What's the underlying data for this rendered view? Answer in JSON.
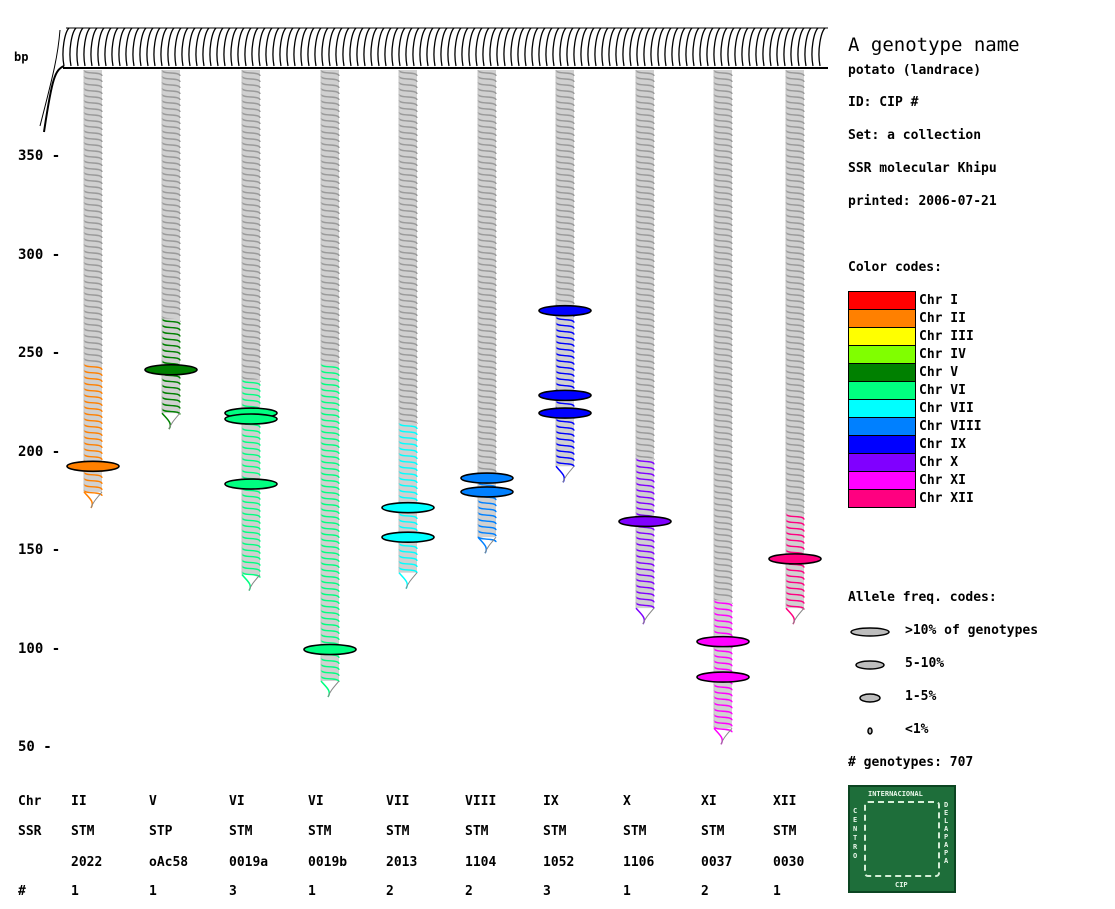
{
  "info": {
    "title": "A genotype name",
    "subtitle": "potato (landrace)",
    "id_line": "ID: CIP #",
    "set_line": "Set: a collection",
    "method_line": "SSR molecular Khipu",
    "printed_line": "printed: 2006-07-21"
  },
  "axis": {
    "unit": "bp",
    "ticks": [
      "350 -",
      "300 -",
      "250 -",
      "200 -",
      "150 -",
      "100 -",
      "50 -"
    ],
    "tick_values": [
      350,
      300,
      250,
      200,
      150,
      100,
      50
    ],
    "range": [
      40,
      380
    ]
  },
  "row_labels": {
    "chr": "Chr",
    "ssr": "SSR",
    "count": "#"
  },
  "color_codes": {
    "heading": "Color codes:",
    "items": [
      {
        "label": "Chr I",
        "color": "#ff0000"
      },
      {
        "label": "Chr II",
        "color": "#ff8000"
      },
      {
        "label": "Chr III",
        "color": "#ffff00"
      },
      {
        "label": "Chr IV",
        "color": "#80ff00"
      },
      {
        "label": "Chr V",
        "color": "#008000"
      },
      {
        "label": "Chr VI",
        "color": "#00ff80"
      },
      {
        "label": "Chr VII",
        "color": "#00ffff"
      },
      {
        "label": "Chr VIII",
        "color": "#0080ff"
      },
      {
        "label": "Chr IX",
        "color": "#0000ff"
      },
      {
        "label": "Chr X",
        "color": "#8000ff"
      },
      {
        "label": "Chr XI",
        "color": "#ff00ff"
      },
      {
        "label": "Chr XII",
        "color": "#ff0080"
      }
    ]
  },
  "allele_freq": {
    "heading": "Allele freq. codes:",
    "items": [
      {
        "label": ">10% of genotypes",
        "size": "large"
      },
      {
        "label": "5-10%",
        "size": "medium"
      },
      {
        "label": "1-5%",
        "size": "small"
      },
      {
        "label": "<1%",
        "size": "tiny"
      }
    ]
  },
  "genotypes_line": "# genotypes: 707",
  "logo": {
    "top_text": "INTERNACIONAL",
    "left_text": "CENTRO",
    "right_text": "DE LA PAPA",
    "bottom_text": "CIP"
  },
  "markers": [
    {
      "chr": "II",
      "ssr_prefix": "STM",
      "ssr_id": "2022",
      "count": "1",
      "color": "#ff8000",
      "range": [
        180,
        245
      ],
      "alleles": [
        193
      ]
    },
    {
      "chr": "V",
      "ssr_prefix": "STP",
      "ssr_id": "oAc58",
      "count": "1",
      "color": "#008000",
      "range": [
        220,
        268
      ],
      "alleles": [
        242
      ]
    },
    {
      "chr": "VI",
      "ssr_prefix": "STM",
      "ssr_id": "0019a",
      "count": "3",
      "color": "#00ff80",
      "range": [
        138,
        237
      ],
      "alleles": [
        220,
        217,
        184
      ]
    },
    {
      "chr": "VI",
      "ssr_prefix": "STM",
      "ssr_id": "0019b",
      "count": "1",
      "color": "#00ff80",
      "range": [
        84,
        245
      ],
      "alleles": [
        100
      ]
    },
    {
      "chr": "VII",
      "ssr_prefix": "STM",
      "ssr_id": "2013",
      "count": "2",
      "color": "#00ffff",
      "range": [
        139,
        215
      ],
      "alleles": [
        172,
        157
      ]
    },
    {
      "chr": "VIII",
      "ssr_prefix": "STM",
      "ssr_id": "1104",
      "count": "2",
      "color": "#0080ff",
      "range": [
        157,
        188
      ],
      "alleles": [
        187,
        180
      ]
    },
    {
      "chr": "IX",
      "ssr_prefix": "STM",
      "ssr_id": "1052",
      "count": "3",
      "color": "#0000ff",
      "range": [
        193,
        272
      ],
      "alleles": [
        272,
        229,
        220
      ]
    },
    {
      "chr": "X",
      "ssr_prefix": "STM",
      "ssr_id": "1106",
      "count": "1",
      "color": "#8000ff",
      "range": [
        121,
        197
      ],
      "alleles": [
        165
      ]
    },
    {
      "chr": "XI",
      "ssr_prefix": "STM",
      "ssr_id": "0037",
      "count": "2",
      "color": "#ff00ff",
      "range": [
        60,
        125
      ],
      "alleles": [
        104,
        86
      ]
    },
    {
      "chr": "XII",
      "ssr_prefix": "STM",
      "ssr_id": "0030",
      "count": "1",
      "color": "#ff0080",
      "range": [
        121,
        169
      ],
      "alleles": [
        146
      ]
    }
  ]
}
